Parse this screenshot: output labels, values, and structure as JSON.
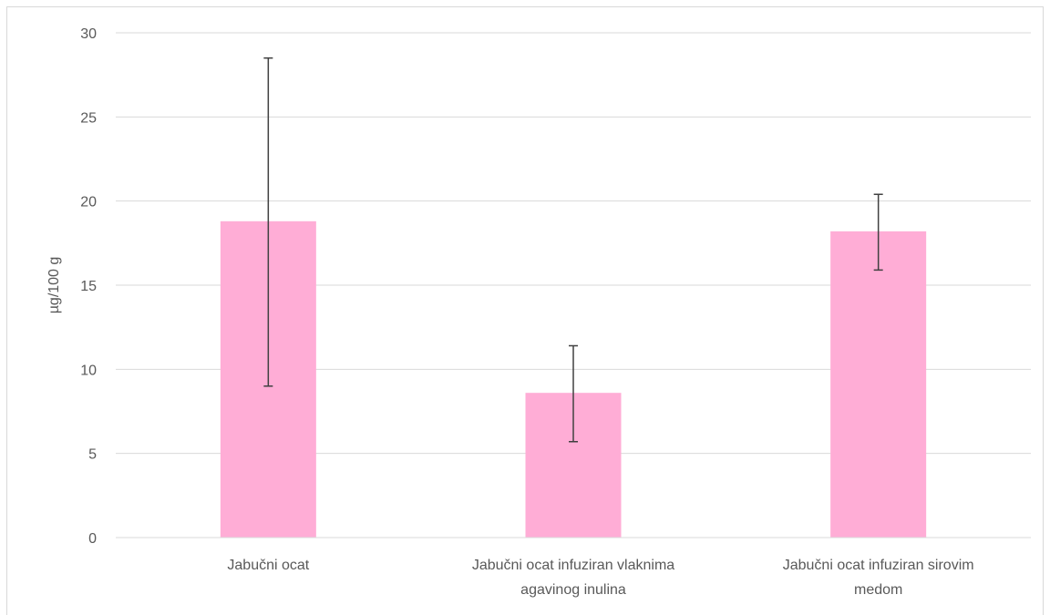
{
  "chart_data": {
    "type": "bar",
    "categories": [
      [
        "Jabučni ocat"
      ],
      [
        "Jabučni ocat infuziran vlaknima",
        "agavinog inulina"
      ],
      [
        "Jabučni ocat infuziran sirovim",
        "medom"
      ]
    ],
    "values": [
      18.8,
      8.6,
      18.2
    ],
    "error_low": [
      9.0,
      5.7,
      15.9
    ],
    "error_high": [
      28.5,
      11.4,
      20.4
    ],
    "title": "",
    "xlabel": "",
    "ylabel": "µg/100 g",
    "ylim": [
      0,
      30
    ],
    "yticks": [
      0,
      5,
      10,
      15,
      20,
      25,
      30
    ],
    "grid": true,
    "legend": "none",
    "colors": {
      "bar": "#ffadd6",
      "grid": "#d9d9d9",
      "error_bar": "#404040",
      "text": "#595959"
    }
  }
}
